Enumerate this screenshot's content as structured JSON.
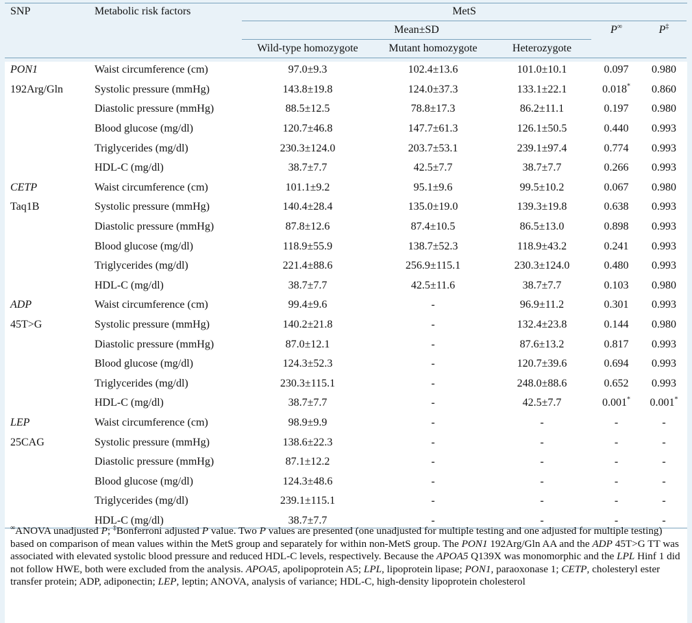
{
  "headers": {
    "snp": "SNP",
    "risk": "Metabolic risk factors",
    "mets": "MetS",
    "meansd": "Mean±SD",
    "p1_letter": "P",
    "p1_sup": "∞",
    "p2_letter": "P",
    "p2_sup": "‡",
    "wild": "Wild-type homozygote",
    "mutant": "Mutant homozygote",
    "hetero": "Heterozygote"
  },
  "groups": [
    {
      "name": "PON1",
      "variant": "192Arg/Gln",
      "rows": [
        {
          "factor": "Waist circumference (cm)",
          "wild": "97.0±9.3",
          "mutant": "102.4±13.6",
          "hetero": "101.0±10.1",
          "p1": "0.097",
          "p1_sup": "",
          "p2": "0.980",
          "p2_sup": ""
        },
        {
          "factor": "Systolic pressure (mmHg)",
          "wild": "143.8±19.8",
          "mutant": "124.0±37.3",
          "hetero": "133.1±22.1",
          "p1": "0.018",
          "p1_sup": "*",
          "p2": "0.860",
          "p2_sup": ""
        },
        {
          "factor": "Diastolic pressure (mmHg)",
          "wild": "88.5±12.5",
          "mutant": "78.8±17.3",
          "hetero": "86.2±11.1",
          "p1": "0.197",
          "p1_sup": "",
          "p2": "0.980",
          "p2_sup": ""
        },
        {
          "factor": "Blood glucose (mg/dl)",
          "wild": "120.7±46.8",
          "mutant": "147.7±61.3",
          "hetero": "126.1±50.5",
          "p1": "0.440",
          "p1_sup": "",
          "p2": "0.993",
          "p2_sup": ""
        },
        {
          "factor": "Triglycerides (mg/dl)",
          "wild": "230.3±124.0",
          "mutant": "203.7±53.1",
          "hetero": "239.1±97.4",
          "p1": "0.774",
          "p1_sup": "",
          "p2": "0.993",
          "p2_sup": ""
        },
        {
          "factor": "HDL-C (mg/dl)",
          "wild": "38.7±7.7",
          "mutant": "42.5±7.7",
          "hetero": "38.7±7.7",
          "p1": "0.266",
          "p1_sup": "",
          "p2": "0.993",
          "p2_sup": ""
        }
      ]
    },
    {
      "name": "CETP",
      "variant": "Taq1B",
      "rows": [
        {
          "factor": "Waist circumference (cm)",
          "wild": "101.1±9.2",
          "mutant": "95.1±9.6",
          "hetero": "99.5±10.2",
          "p1": "0.067",
          "p1_sup": "",
          "p2": "0.980",
          "p2_sup": ""
        },
        {
          "factor": "Systolic pressure (mmHg)",
          "wild": "140.4±28.4",
          "mutant": "135.0±19.0",
          "hetero": "139.3±19.8",
          "p1": "0.638",
          "p1_sup": "",
          "p2": "0.993",
          "p2_sup": ""
        },
        {
          "factor": "Diastolic pressure (mmHg)",
          "wild": "87.8±12.6",
          "mutant": "87.4±10.5",
          "hetero": "86.5±13.0",
          "p1": "0.898",
          "p1_sup": "",
          "p2": "0.993",
          "p2_sup": ""
        },
        {
          "factor": "Blood glucose (mg/dl)",
          "wild": "118.9±55.9",
          "mutant": "138.7±52.3",
          "hetero": "118.9±43.2",
          "p1": "0.241",
          "p1_sup": "",
          "p2": "0.993",
          "p2_sup": ""
        },
        {
          "factor": "Triglycerides (mg/dl)",
          "wild": "221.4±88.6",
          "mutant": "256.9±115.1",
          "hetero": "230.3±124.0",
          "p1": "0.480",
          "p1_sup": "",
          "p2": "0.993",
          "p2_sup": ""
        },
        {
          "factor": "HDL-C (mg/dl)",
          "wild": "38.7±7.7",
          "mutant": "42.5±11.6",
          "hetero": "38.7±7.7",
          "p1": "0.103",
          "p1_sup": "",
          "p2": "0.980",
          "p2_sup": ""
        }
      ]
    },
    {
      "name": "ADP",
      "variant": "45T>G",
      "rows": [
        {
          "factor": "Waist circumference (cm)",
          "wild": "99.4±9.6",
          "mutant": "-",
          "hetero": "96.9±11.2",
          "p1": "0.301",
          "p1_sup": "",
          "p2": "0.993",
          "p2_sup": ""
        },
        {
          "factor": "Systolic pressure (mmHg)",
          "wild": "140.2±21.8",
          "mutant": "-",
          "hetero": "132.4±23.8",
          "p1": "0.144",
          "p1_sup": "",
          "p2": "0.980",
          "p2_sup": ""
        },
        {
          "factor": "Diastolic pressure (mmHg)",
          "wild": "87.0±12.1",
          "mutant": "-",
          "hetero": "87.6±13.2",
          "p1": "0.817",
          "p1_sup": "",
          "p2": "0.993",
          "p2_sup": ""
        },
        {
          "factor": "Blood glucose (mg/dl)",
          "wild": "124.3±52.3",
          "mutant": "-",
          "hetero": "120.7±39.6",
          "p1": "0.694",
          "p1_sup": "",
          "p2": "0.993",
          "p2_sup": ""
        },
        {
          "factor": "Triglycerides (mg/dl)",
          "wild": "230.3±115.1",
          "mutant": "-",
          "hetero": "248.0±88.6",
          "p1": "0.652",
          "p1_sup": "",
          "p2": "0.993",
          "p2_sup": ""
        },
        {
          "factor": "HDL-C (mg/dl)",
          "wild": "38.7±7.7",
          "mutant": "-",
          "hetero": "42.5±7.7",
          "p1": "0.001",
          "p1_sup": "*",
          "p2": "0.001",
          "p2_sup": "*"
        }
      ]
    },
    {
      "name": "LEP",
      "variant": "25CAG",
      "rows": [
        {
          "factor": "Waist circumference (cm)",
          "wild": "98.9±9.9",
          "mutant": "-",
          "hetero": "-",
          "p1": "-",
          "p1_sup": "",
          "p2": "-",
          "p2_sup": ""
        },
        {
          "factor": "Systolic pressure (mmHg)",
          "wild": "138.6±22.3",
          "mutant": "-",
          "hetero": "-",
          "p1": "-",
          "p1_sup": "",
          "p2": "-",
          "p2_sup": ""
        },
        {
          "factor": "Diastolic pressure (mmHg)",
          "wild": "87.1±12.2",
          "mutant": "-",
          "hetero": "-",
          "p1": "-",
          "p1_sup": "",
          "p2": "-",
          "p2_sup": ""
        },
        {
          "factor": "Blood glucose (mg/dl)",
          "wild": "124.3±48.6",
          "mutant": "-",
          "hetero": "-",
          "p1": "-",
          "p1_sup": "",
          "p2": "-",
          "p2_sup": ""
        },
        {
          "factor": "Triglycerides (mg/dl)",
          "wild": "239.1±115.1",
          "mutant": "-",
          "hetero": "-",
          "p1": "-",
          "p1_sup": "",
          "p2": "-",
          "p2_sup": ""
        },
        {
          "factor": "HDL-C (mg/dl)",
          "wild": "38.7±7.7",
          "mutant": "-",
          "hetero": "-",
          "p1": "-",
          "p1_sup": "",
          "p2": "-",
          "p2_sup": ""
        }
      ]
    }
  ],
  "footnote": {
    "seg01_sup": "∞",
    "seg02": "ANOVA unadjusted ",
    "seg03_i": "P",
    "seg04": "; ",
    "seg05_sup": "‡",
    "seg06": "Bonferroni adjusted ",
    "seg07_i": "P",
    "seg08": " value. Two ",
    "seg09_i": "P",
    "seg10": " values are presented (one unadjusted for multiple testing and one adjusted for multiple testing) based on comparison of mean values within the MetS group and separately for within non-MetS group. The ",
    "seg11_i": "PON1",
    "seg12": " 192Arg/Gln AA and the ",
    "seg13_i": "ADP",
    "seg14": " 45T>G TT was associated with elevated systolic blood pressure and reduced HDL-C levels, respectively. Because the ",
    "seg15_i": "APOA5",
    "seg16": " Q139X was monomorphic and the ",
    "seg17_i": "LPL",
    "seg18": " Hinf 1 did not follow HWE, both were excluded from the analysis. ",
    "seg19_i": "APOA5",
    "seg20": ", apolipoprotein A5; ",
    "seg21_i": "LPL",
    "seg22": ", lipoprotein lipase; ",
    "seg23_i": "PON1",
    "seg24": ", paraoxonase 1; ",
    "seg25_i": "CETP",
    "seg26": ", cholesteryl ester transfer protein; ADP, adiponectin; ",
    "seg27_i": "LEP",
    "seg28": ", leptin; ANOVA, analysis of variance; HDL-C, high-density lipoprotein cholesterol"
  }
}
